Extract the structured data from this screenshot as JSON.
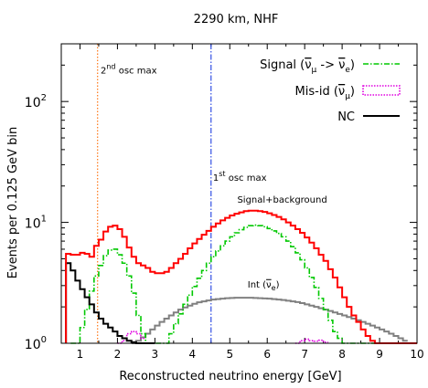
{
  "chart_data": {
    "type": "line",
    "title": "2290 km, NHF",
    "xlabel": "Reconstructed neutrino energy [GeV]",
    "ylabel": "Events per 0.125 GeV bin",
    "xlim": [
      0.5,
      10
    ],
    "ylim": [
      1,
      300
    ],
    "yscale": "log",
    "bin_width": 0.125,
    "x_ticks": [
      "1",
      "2",
      "3",
      "4",
      "5",
      "6",
      "7",
      "8",
      "9",
      "10"
    ],
    "y_ticks": [
      {
        "value": 1,
        "base": "10",
        "exp": "0"
      },
      {
        "value": 10,
        "base": "10",
        "exp": "1"
      },
      {
        "value": 100,
        "base": "10",
        "exp": "2"
      }
    ],
    "legend": {
      "position": "top-right",
      "entries": [
        {
          "series": "signal",
          "label_pre": "Signal (",
          "label_sym1": "ν",
          "label_sub1": "μ",
          "label_mid": " -> ",
          "label_sym2": "ν",
          "label_sub2": "e",
          "label_post": ")"
        },
        {
          "series": "misid",
          "label_pre": "Mis-id (",
          "label_sym1": "ν",
          "label_sub1": "μ",
          "label_post": ")"
        },
        {
          "series": "nc",
          "label_pre": "NC"
        }
      ]
    },
    "vlines": [
      {
        "x": 1.47,
        "color": "#ff6a00",
        "style": "dotted",
        "label_pre": "2",
        "label_sup": "nd",
        "label_post": " osc max",
        "label_x": 1.55,
        "label_y": 170
      },
      {
        "x": 4.5,
        "color": "#1f3fe0",
        "style": "dashdot",
        "label_pre": "1",
        "label_sup": "st",
        "label_post": " osc max",
        "label_x": 4.55,
        "label_y": 22
      }
    ],
    "annotations": [
      {
        "text": "Signal+background",
        "x": 6.4,
        "y": 14.5
      },
      {
        "text_pre": "Int (",
        "sym": "ν",
        "sub": "e",
        "text_post": ")",
        "x": 5.9,
        "y": 2.9
      }
    ],
    "series": [
      {
        "key": "total",
        "name": "Signal+background",
        "color": "#ff0000",
        "dash": "",
        "width": 2,
        "edges": [
          0.625,
          10.0
        ],
        "values": [
          5.5,
          5.4,
          5.4,
          5.6,
          5.5,
          5.2,
          6.4,
          7.2,
          8.4,
          9.2,
          9.4,
          8.8,
          7.6,
          6.2,
          5.2,
          4.6,
          4.4,
          4.2,
          3.9,
          3.8,
          3.8,
          3.9,
          4.2,
          4.6,
          5.0,
          5.5,
          6.1,
          6.7,
          7.3,
          7.9,
          8.5,
          9.2,
          9.8,
          10.4,
          10.9,
          11.4,
          11.8,
          12.1,
          12.4,
          12.5,
          12.5,
          12.4,
          12.2,
          11.9,
          11.5,
          11.1,
          10.6,
          10.0,
          9.4,
          8.8,
          8.2,
          7.5,
          6.8,
          6.1,
          5.4,
          4.8,
          4.1,
          3.5,
          2.9,
          2.4,
          2.0,
          1.7,
          1.5,
          1.3,
          1.15,
          1.05,
          1.0,
          1.0,
          1.0,
          1.0,
          1.0,
          1.0,
          1.0,
          1.0,
          1.0
        ]
      },
      {
        "key": "signal",
        "name": "Signal",
        "color": "#00c800",
        "dash": "6 2 1.5 2",
        "width": 1.6,
        "edges": [
          0.75,
          9.125
        ],
        "values": [
          1.0,
          1.0,
          1.35,
          1.9,
          2.7,
          3.6,
          4.4,
          5.3,
          5.9,
          6.0,
          5.4,
          4.6,
          3.6,
          2.6,
          1.7,
          1.2,
          1.0,
          1.0,
          1.0,
          1.0,
          1.0,
          1.2,
          1.45,
          1.75,
          2.1,
          2.5,
          2.95,
          3.45,
          4.0,
          4.6,
          5.2,
          5.8,
          6.4,
          7.0,
          7.6,
          8.2,
          8.7,
          9.1,
          9.4,
          9.5,
          9.4,
          9.2,
          8.9,
          8.5,
          8.1,
          7.6,
          7.0,
          6.3,
          5.6,
          4.9,
          4.2,
          3.5,
          2.9,
          2.35,
          1.9,
          1.55,
          1.25,
          1.1,
          1.0,
          1.0,
          1.0,
          1.0,
          1.0,
          1.0,
          1.0,
          1.0,
          1.0
        ]
      },
      {
        "key": "misid",
        "name": "Mis-id",
        "color": "#e000e0",
        "dash": "1.5 1.5",
        "width": 1.6,
        "edges": [
          2.0,
          2.625
        ],
        "values": [
          1.0,
          1.05,
          1.2,
          1.25,
          1.2,
          1.1
        ]
      },
      {
        "key": "misid2",
        "name": "Mis-id",
        "color": "#e000e0",
        "dash": "1.5 1.5",
        "width": 1.6,
        "edges": [
          6.75,
          7.625
        ],
        "values": [
          1.0,
          1.05,
          1.08,
          1.05,
          1.04,
          1.06,
          1.02
        ]
      },
      {
        "key": "nc",
        "name": "NC",
        "color": "#000000",
        "dash": "",
        "width": 2,
        "edges": [
          0.625,
          3.0
        ],
        "values": [
          4.6,
          4.0,
          3.3,
          2.8,
          2.4,
          2.1,
          1.8,
          1.6,
          1.45,
          1.35,
          1.25,
          1.15,
          1.1,
          1.05,
          1.02,
          1.0,
          1.0,
          1.0,
          1.0
        ]
      },
      {
        "key": "int",
        "name": "Int",
        "color": "#808080",
        "dash": "",
        "width": 2,
        "edges": [
          2.375,
          9.625
        ],
        "values": [
          1.0,
          1.05,
          1.12,
          1.2,
          1.3,
          1.4,
          1.5,
          1.6,
          1.7,
          1.8,
          1.9,
          1.98,
          2.05,
          2.12,
          2.18,
          2.22,
          2.26,
          2.3,
          2.32,
          2.34,
          2.36,
          2.37,
          2.38,
          2.38,
          2.38,
          2.38,
          2.37,
          2.36,
          2.35,
          2.34,
          2.32,
          2.3,
          2.28,
          2.25,
          2.22,
          2.19,
          2.15,
          2.1,
          2.05,
          2.0,
          1.95,
          1.9,
          1.85,
          1.8,
          1.75,
          1.7,
          1.65,
          1.6,
          1.55,
          1.5,
          1.45,
          1.4,
          1.35,
          1.3,
          1.25,
          1.2,
          1.15,
          1.1,
          1.05
        ]
      }
    ]
  }
}
